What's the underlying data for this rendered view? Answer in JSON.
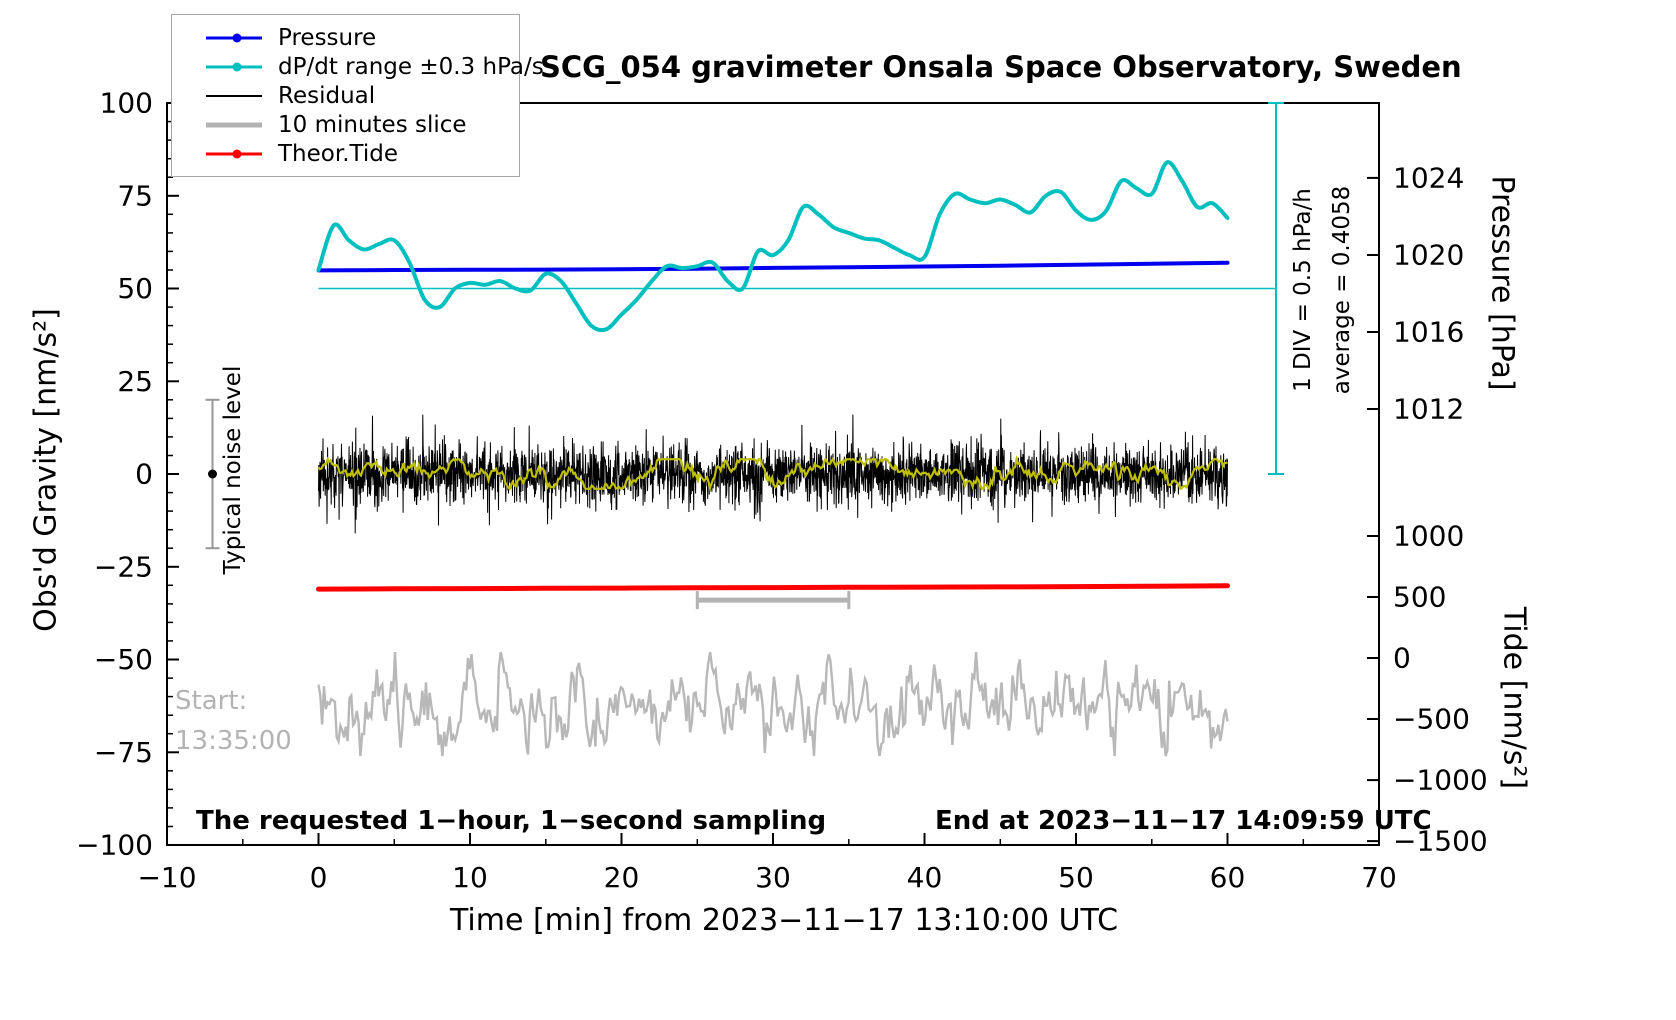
{
  "legend": {
    "items": [
      {
        "label": "Pressure",
        "color": "#0000ee",
        "marker": "line-dot",
        "lw": 3
      },
      {
        "label": "dP/dt range ±0.3 hPa/s",
        "color": "#00bfbf",
        "marker": "line-dot",
        "lw": 3
      },
      {
        "label": "Residual",
        "color": "#000000",
        "marker": "line",
        "lw": 2
      },
      {
        "label": "10 minutes slice",
        "color": "#b3b3b3",
        "marker": "line",
        "lw": 5
      },
      {
        "label": "Theor.Tide",
        "color": "#ff0000",
        "marker": "line-dot",
        "lw": 3
      }
    ]
  },
  "chart_data": {
    "type": "line",
    "title": "SCG_054 gravimeter Onsala Space Observatory, Sweden",
    "xlabel": "Time [min] from 2023−11−17 13:10:00 UTC",
    "ylabel_left": "Obs'd Gravity [nm/s²]",
    "xlim": [
      -10,
      70
    ],
    "ylim_left": [
      -100,
      100
    ],
    "x_ticks": [
      -10,
      0,
      10,
      20,
      30,
      40,
      50,
      60,
      70
    ],
    "x_minor_step": 5,
    "y_ticks_left": [
      100,
      75,
      50,
      25,
      0,
      -25,
      -50,
      -75,
      -100
    ],
    "y_minor_step": 5,
    "pressure_axis": {
      "label": "Pressure [hPa]",
      "ticks": [
        1024,
        1020,
        1016,
        1012
      ],
      "anchor_value": 1024,
      "anchor_left_v": 79.8,
      "left_v_per_unit": 5.19
    },
    "tide_axis": {
      "label": "Tide [nm/s²]",
      "ticks": [
        1000,
        500,
        0,
        -500,
        -1000,
        -1500
      ],
      "anchor_value": 0,
      "anchor_left_v": -49.6,
      "left_v_per_unit": 0.0329
    },
    "annotations": {
      "start_label": "Start:",
      "start_time": "13:35:00",
      "noise_label": "Typical noise level",
      "div_label": "1 DIV = 0.5 hPa/h",
      "avg_label": "average = 0.4058",
      "footer_left": "The requested 1−hour, 1−second sampling",
      "footer_right": "End at 2023−11−17 14:09:59 UTC"
    },
    "noise_level_marker": {
      "t": -7,
      "v": 0,
      "err": 20
    },
    "slice_window_bar": {
      "t_from": 25,
      "t_to": 35,
      "v": -34
    },
    "avg_line": {
      "v": 50,
      "t_from": 0,
      "t_to": 63.2,
      "color": "#00bfbf"
    },
    "scale_bar": {
      "t": 63.2,
      "v_from": 0,
      "v_to": 100,
      "color": "#00bfbf"
    },
    "series": [
      {
        "name": "Pressure",
        "color": "#0000ee",
        "axis": "pressure",
        "x": [
          0,
          5,
          10,
          15,
          20,
          25,
          30,
          35,
          40,
          45,
          50,
          55,
          60
        ],
        "values": [
          1019.2,
          1019.22,
          1019.23,
          1019.24,
          1019.26,
          1019.28,
          1019.33,
          1019.36,
          1019.4,
          1019.44,
          1019.49,
          1019.54,
          1019.6
        ],
        "unit": "hPa",
        "lw": 4
      },
      {
        "name": "dP/dt range ±0.3 hPa/s",
        "color": "#00bfbf",
        "axis": "left",
        "x_start": 0,
        "x_step": 1,
        "values": [
          55,
          67,
          63,
          60.5,
          62,
          63,
          57,
          47,
          45,
          50,
          51.5,
          51,
          52,
          50,
          49.5,
          54,
          52,
          46,
          40,
          39,
          43,
          47,
          52,
          56,
          55.5,
          56,
          57,
          52,
          50,
          60,
          59,
          63,
          72,
          70,
          66.5,
          65,
          63.5,
          63,
          61,
          59,
          58.5,
          70,
          75.5,
          74,
          73,
          74,
          72.5,
          70.5,
          75,
          76,
          71,
          68.5,
          71,
          79,
          77,
          75.5,
          84,
          79,
          72,
          73,
          69
        ],
        "lw": 4,
        "smooth": true
      },
      {
        "name": "Theor.Tide",
        "color": "#ff0000",
        "axis": "tide",
        "x": [
          0,
          5,
          10,
          15,
          20,
          25,
          30,
          35,
          40,
          45,
          50,
          55,
          60
        ],
        "values": [
          565,
          567,
          569,
          571,
          573,
          575,
          577,
          579,
          581,
          583,
          585,
          588,
          592
        ],
        "unit": "nm/s²",
        "lw": 5
      }
    ],
    "noise_series": [
      {
        "name": "Residual",
        "color": "#000000",
        "center_v": 0,
        "sigma": 4,
        "spike_chance": 0.02,
        "spike_gain": 2.2,
        "clamp": 16,
        "points": 3000,
        "t_from": 0,
        "t_to": 60,
        "seed": 11,
        "lw": 1
      },
      {
        "name": "Residual smoothed",
        "color": "#bfbf00",
        "center_v": 0,
        "sigma": 0.9,
        "ar": 0.9,
        "clamp": 4,
        "points": 600,
        "t_from": 0,
        "t_to": 60,
        "seed": 23,
        "lw": 2.2
      },
      {
        "name": "10 minutes slice",
        "color": "#b8b8b8",
        "center_v": -62,
        "sigma": 4.5,
        "ar": 0.6,
        "clamp": 14,
        "points": 500,
        "t_from": 0,
        "t_to": 60,
        "seed": 37,
        "lw": 2.4
      }
    ]
  }
}
